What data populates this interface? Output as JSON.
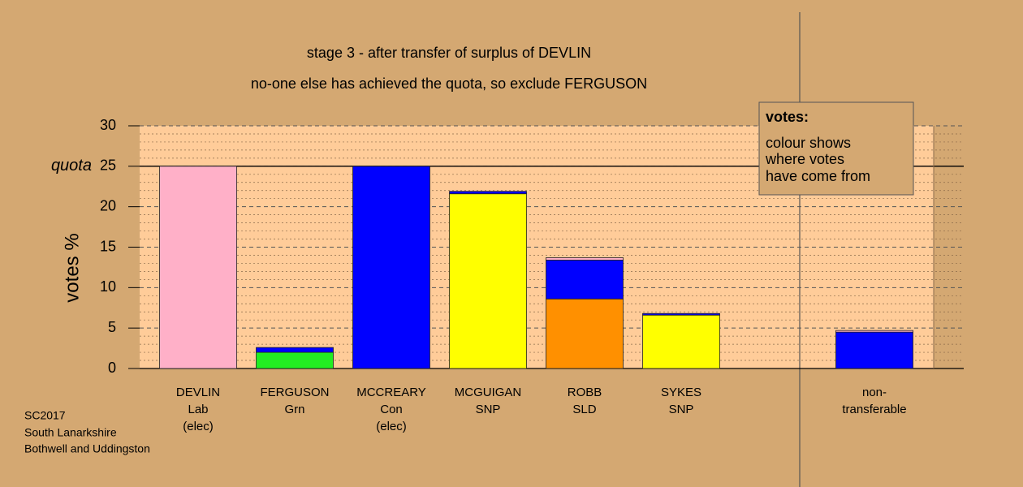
{
  "chart_data": {
    "type": "stacked_bar",
    "title": "stage 3 - after transfer of surplus of DEVLIN",
    "subtitle": "no-one else has achieved the quota, so exclude FERGUSON",
    "y_label": "votes %",
    "categories": [
      [
        "DEVLIN",
        "Lab",
        "(elec)"
      ],
      [
        "FERGUSON",
        "Grn"
      ],
      [
        "MCCREARY",
        "Con",
        "(elec)"
      ],
      [
        "MCGUIGAN",
        "SNP"
      ],
      [
        "ROBB",
        "SLD"
      ],
      [
        "SYKES",
        "SNP"
      ],
      null,
      [
        "non-",
        "transferable"
      ]
    ],
    "series": [
      {
        "color": "#22ee22",
        "values": [
          null,
          2.0,
          null,
          null,
          null,
          null,
          null,
          null
        ]
      },
      {
        "color": "#ffff00",
        "values": [
          null,
          null,
          null,
          21.6,
          null,
          6.6,
          null,
          null
        ]
      },
      {
        "color": "#ff9000",
        "values": [
          null,
          null,
          null,
          null,
          8.6,
          null,
          null,
          null
        ]
      },
      {
        "color": "#0000ff",
        "values": [
          null,
          0.6,
          25,
          0.3,
          4.8,
          0.2,
          null,
          4.5
        ]
      },
      {
        "color": "#ffb0c8",
        "values": [
          25,
          null,
          null,
          null,
          0.3,
          null,
          null,
          0.2
        ]
      }
    ],
    "ylim": [
      0,
      30
    ],
    "yticks": [
      0,
      5,
      10,
      15,
      20,
      25,
      30
    ],
    "minor_yticks": [
      1,
      2,
      3,
      4,
      6,
      7,
      8,
      9,
      11,
      12,
      13,
      14,
      16,
      17,
      18,
      19,
      21,
      22,
      23,
      24,
      26,
      27,
      28,
      29
    ],
    "grid": true,
    "quota": {
      "value": 25,
      "label": "quota"
    },
    "legend": {
      "title": "votes:",
      "lines": [
        "colour shows",
        "where votes",
        "have come from"
      ]
    },
    "notes": [
      "SC2017",
      "South Lanarkshire",
      "Bothwell and Uddingston"
    ]
  }
}
